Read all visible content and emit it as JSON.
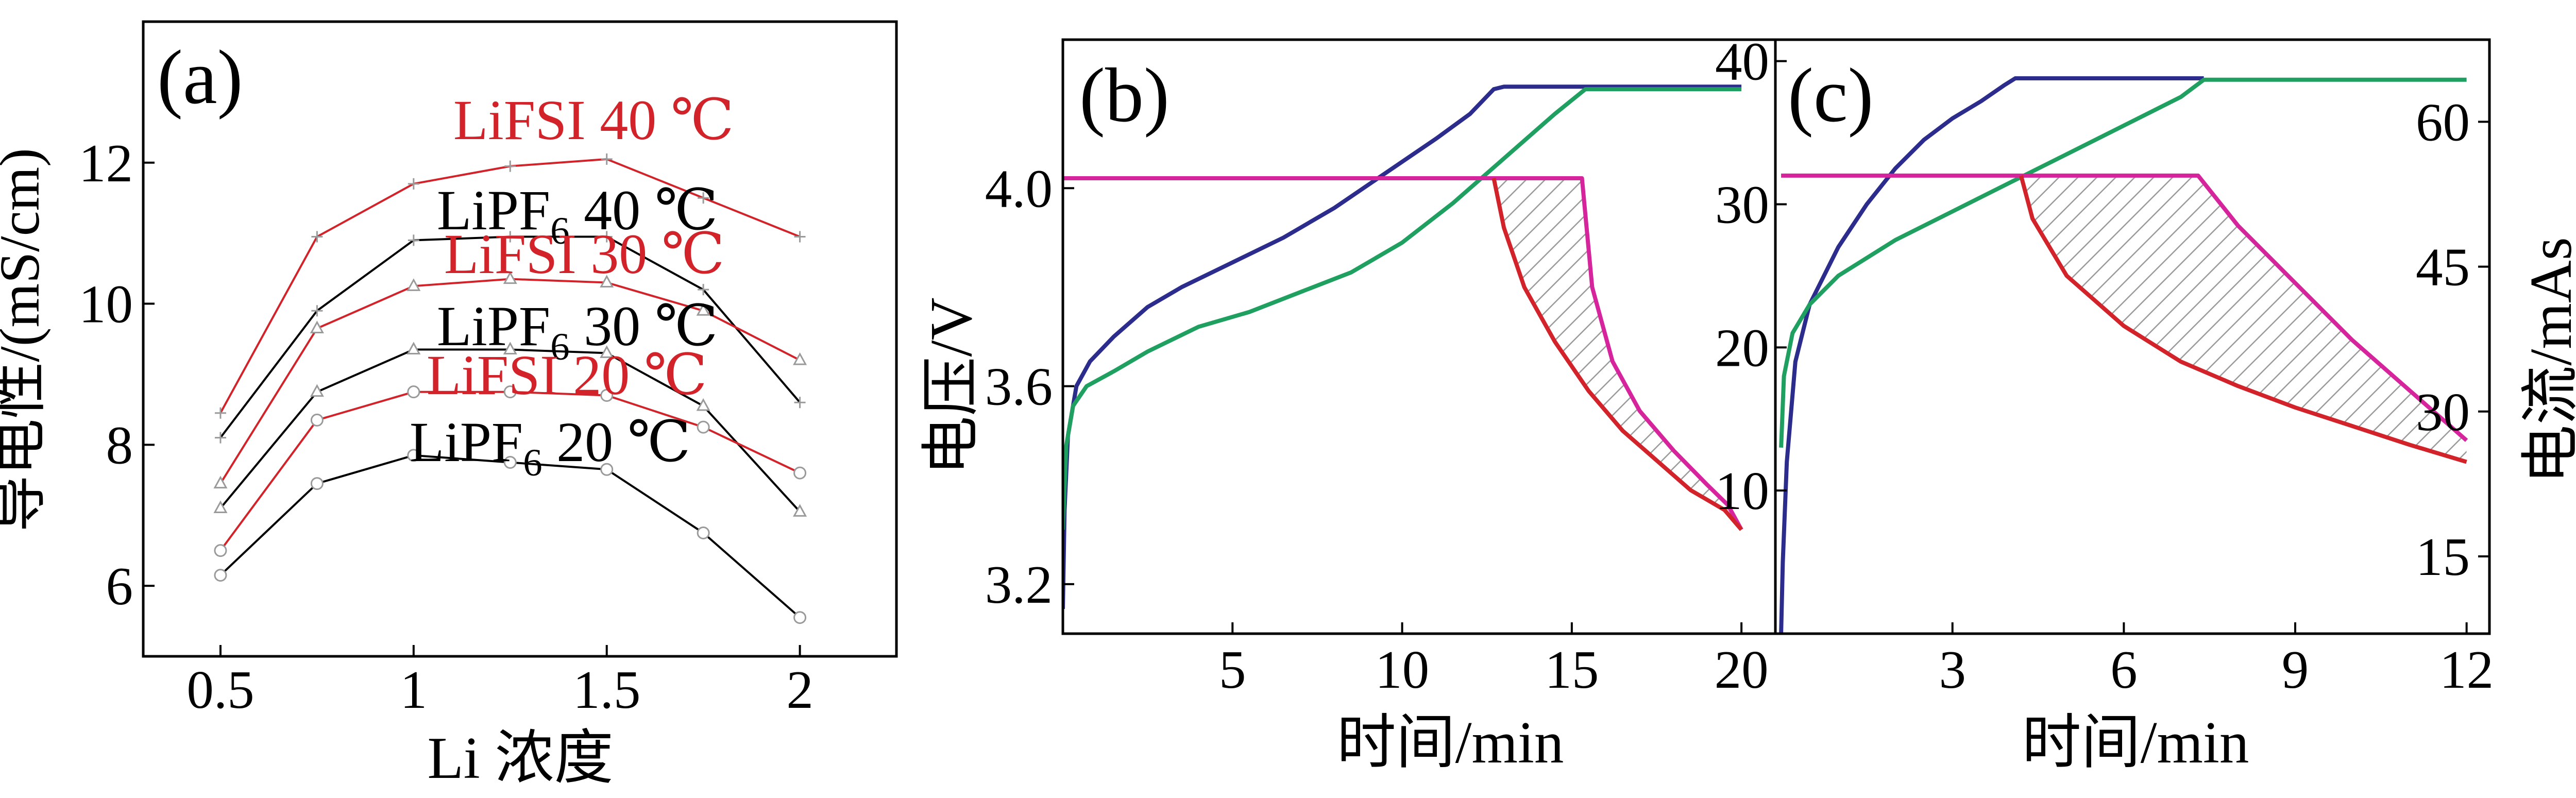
{
  "colors": {
    "red": "#d2232a",
    "black": "#000000",
    "navy": "#2b2c8c",
    "green": "#1fa060",
    "magenta": "#d6249c",
    "marker_fill": "#ffffff",
    "marker_stroke": "#9a9a9a",
    "hatch": "#9a9a9a"
  },
  "chart_data": [
    {
      "panel": "(a)",
      "type": "line",
      "xlabel": "Li 浓度",
      "ylabel": "导电性/(mS/cm)",
      "xlim": [
        0.3,
        2.25
      ],
      "ylim": [
        5,
        14
      ],
      "xticks": [
        "0.5",
        "1",
        "1.5",
        "2"
      ],
      "xtick_values": [
        0.5,
        1,
        1.5,
        2
      ],
      "yticks": [
        "6",
        "8",
        "10",
        "12"
      ],
      "ytick_values": [
        6,
        8,
        10,
        12
      ],
      "x": [
        0.5,
        0.75,
        1,
        1.25,
        1.5,
        1.75,
        2
      ],
      "series": [
        {
          "name": "LiFSI 40 ℃",
          "color": "red",
          "marker": "plus",
          "values": [
            8.45,
            10.95,
            11.7,
            11.95,
            12.05,
            11.5,
            10.95
          ]
        },
        {
          "name": "LiPF6 40 ℃",
          "color": "black",
          "marker": "plus",
          "values": [
            8.1,
            9.9,
            10.9,
            10.95,
            10.95,
            10.2,
            8.6
          ]
        },
        {
          "name": "LiFSI 30 ℃",
          "color": "red",
          "marker": "triangle",
          "values": [
            7.45,
            9.65,
            10.25,
            10.35,
            10.3,
            9.9,
            9.2
          ]
        },
        {
          "name": "LiPF6 30 ℃",
          "color": "black",
          "marker": "triangle",
          "values": [
            7.1,
            8.75,
            9.35,
            9.35,
            9.3,
            8.55,
            7.05
          ]
        },
        {
          "name": "LiFSI 20 ℃",
          "color": "red",
          "marker": "circle",
          "values": [
            6.5,
            8.35,
            8.75,
            8.75,
            8.7,
            8.25,
            7.6
          ]
        },
        {
          "name": "LiPF6 20 ℃",
          "color": "black",
          "marker": "circle",
          "values": [
            6.15,
            7.45,
            7.85,
            7.75,
            7.65,
            6.75,
            5.55
          ]
        }
      ],
      "legend_labels": [
        {
          "base": "LiFSI 40 ℃",
          "sub": "",
          "color": "red"
        },
        {
          "base": "LiPF",
          "sub": "6",
          "tail": " 40 ℃",
          "color": "black"
        },
        {
          "base": "LiFSI 30 ℃",
          "sub": "",
          "color": "red"
        },
        {
          "base": "LiPF",
          "sub": "6",
          "tail": " 30 ℃",
          "color": "black"
        },
        {
          "base": "LiFSI 20 ℃",
          "sub": "",
          "color": "red"
        },
        {
          "base": "LiPF",
          "sub": "6",
          "tail": " 20 ℃",
          "color": "black"
        }
      ]
    },
    {
      "panel": "(b)",
      "type": "line",
      "xlabel": "时间/min",
      "ylabel": "电压/V",
      "xlim": [
        0,
        21
      ],
      "ylim": [
        3.1,
        4.3
      ],
      "xticks": [
        "5",
        "10",
        "15",
        "20"
      ],
      "xtick_values": [
        5,
        10,
        15,
        20
      ],
      "yticks": [
        "3.2",
        "3.6",
        "4.0"
      ],
      "ytick_values": [
        3.2,
        3.6,
        4.0
      ],
      "series": [
        {
          "color": "navy",
          "x": [
            0,
            0.05,
            0.15,
            0.4,
            0.8,
            1.5,
            2.5,
            3.5,
            5,
            6.5,
            8,
            9.5,
            11,
            12,
            12.7,
            13,
            16,
            20
          ],
          "y": [
            3.15,
            3.35,
            3.5,
            3.6,
            3.65,
            3.7,
            3.76,
            3.8,
            3.85,
            3.9,
            3.96,
            4.03,
            4.1,
            4.15,
            4.2,
            4.205,
            4.205,
            4.205
          ]
        },
        {
          "color": "green",
          "x": [
            0,
            0.1,
            0.3,
            0.7,
            1.5,
            2.5,
            4,
            5.5,
            7,
            8.5,
            10,
            11.5,
            13,
            14.5,
            15.4,
            16,
            18,
            20
          ],
          "y": [
            3.31,
            3.48,
            3.56,
            3.6,
            3.63,
            3.67,
            3.72,
            3.75,
            3.79,
            3.83,
            3.89,
            3.97,
            4.06,
            4.15,
            4.2,
            4.2,
            4.2,
            4.2
          ]
        },
        {
          "color": "magenta",
          "x": [
            0,
            12.7,
            15.3,
            15.6,
            16.2,
            17,
            18,
            19,
            19.6,
            20
          ],
          "y": [
            4.02,
            4.02,
            4.02,
            3.8,
            3.65,
            3.55,
            3.47,
            3.4,
            3.36,
            3.31
          ]
        },
        {
          "color": "red",
          "x": [
            12.7,
            13.0,
            13.6,
            14.5,
            15.5,
            16.5,
            17.5,
            18.5,
            19.5,
            20
          ],
          "y": [
            4.02,
            3.92,
            3.8,
            3.69,
            3.59,
            3.51,
            3.45,
            3.39,
            3.35,
            3.31
          ]
        }
      ],
      "hatched_region": "between magenta and red curves"
    },
    {
      "panel": "(c)",
      "type": "line",
      "xlabel": "时间/min",
      "ylabel_right": "电流/mAs",
      "xlim": [
        -0.1,
        12.4
      ],
      "ylim_left": [
        0,
        41.5
      ],
      "ylim_right": [
        7,
        68.5
      ],
      "xticks": [
        "3",
        "6",
        "9",
        "12"
      ],
      "xtick_values": [
        3,
        6,
        9,
        12
      ],
      "yticks_left": [
        "10",
        "20",
        "30",
        "40"
      ],
      "ytick_values_left": [
        10,
        20,
        30,
        40
      ],
      "yticks_right": [
        "15",
        "30",
        "45",
        "60"
      ],
      "ytick_values_right": [
        15,
        30,
        45,
        60
      ],
      "series": [
        {
          "axis": "left",
          "color": "navy",
          "x": [
            0,
            0.03,
            0.1,
            0.25,
            0.5,
            1,
            1.5,
            2,
            2.5,
            3,
            3.5,
            3.9,
            4.1,
            5,
            6,
            7.4
          ],
          "y": [
            0,
            5,
            12,
            19,
            23,
            27,
            30,
            32.5,
            34.5,
            36,
            37.2,
            38.3,
            38.8,
            38.8,
            38.8,
            38.8
          ]
        },
        {
          "axis": "left",
          "color": "green",
          "x": [
            0,
            0.05,
            0.2,
            0.5,
            1,
            2,
            3,
            4,
            5,
            6,
            7,
            7.4,
            9,
            11,
            12
          ],
          "y": [
            13,
            18,
            21,
            23,
            25,
            27.5,
            29.5,
            31.5,
            33.5,
            35.5,
            37.5,
            38.7,
            38.7,
            38.7,
            38.7
          ]
        },
        {
          "axis": "left",
          "color": "magenta",
          "x": [
            0,
            4.2,
            7.3,
            8,
            9,
            10,
            11,
            12
          ],
          "y": [
            32,
            32,
            32,
            28.5,
            24.5,
            20.5,
            17,
            13.5
          ]
        },
        {
          "axis": "left",
          "color": "red",
          "x": [
            4.2,
            4.4,
            5,
            6,
            7,
            8,
            9,
            10,
            11,
            12
          ],
          "y": [
            32,
            29,
            25,
            21.5,
            19,
            17.3,
            15.8,
            14.5,
            13.2,
            12
          ]
        }
      ],
      "hatched_region": "between magenta and red curves"
    }
  ]
}
